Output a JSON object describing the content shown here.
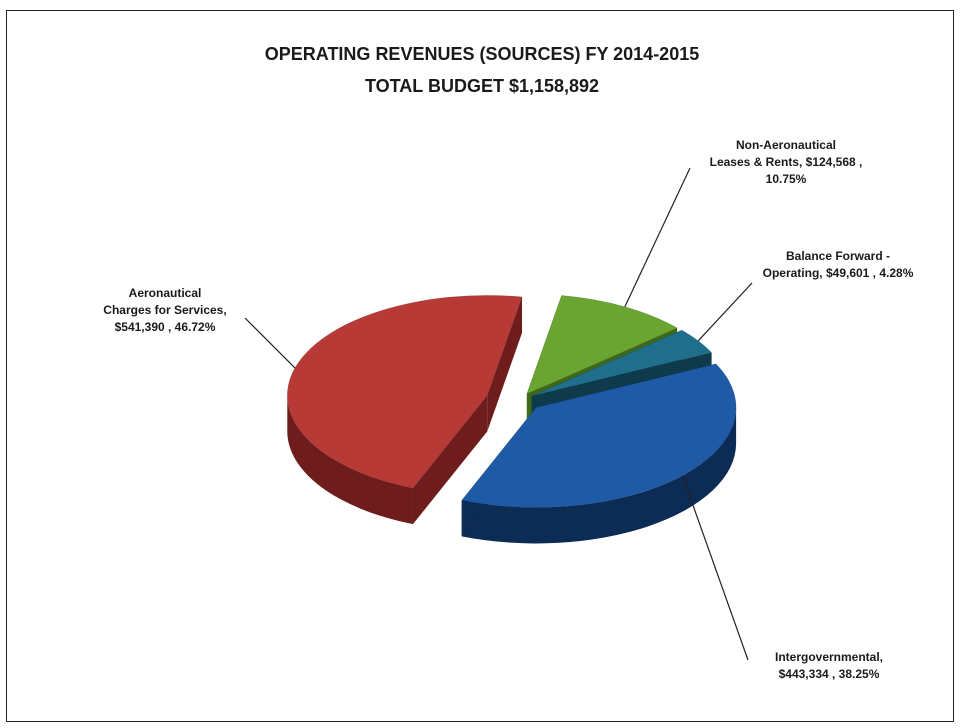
{
  "chart_data": {
    "type": "pie",
    "title": "OPERATING REVENUES (SOURCES) FY 2014-2015",
    "subtitle": "TOTAL BUDGET  $1,158,892",
    "slices": [
      {
        "name": "Non-Aeronautical Leases & Rents",
        "value": 124568,
        "percent": 10.75,
        "label": "Non-Aeronautical\nLeases & Rents,  $124,568 ,\n10.75%",
        "color": "#6aa431",
        "side_color": "#3e6a18"
      },
      {
        "name": "Balance Forward - Operating",
        "value": 49601,
        "percent": 4.28,
        "label": "Balance Forward -\nOperating,  $49,601 , 4.28%",
        "color": "#1e6e8c",
        "side_color": "#0f3a4b"
      },
      {
        "name": "Intergovernmental",
        "value": 443334,
        "percent": 38.25,
        "label": "Intergovernmental,\n$443,334 , 38.25%",
        "color": "#1f5aa6",
        "side_color": "#0c2b55"
      },
      {
        "name": "Aeronautical Charges for Services",
        "value": 541390,
        "percent": 46.72,
        "label": "Aeronautical\nCharges for Services,\n$541,390 , 46.72%",
        "color": "#b83a36",
        "side_color": "#6e1d1c"
      }
    ],
    "style": "3d-exploded",
    "legend": "none"
  }
}
